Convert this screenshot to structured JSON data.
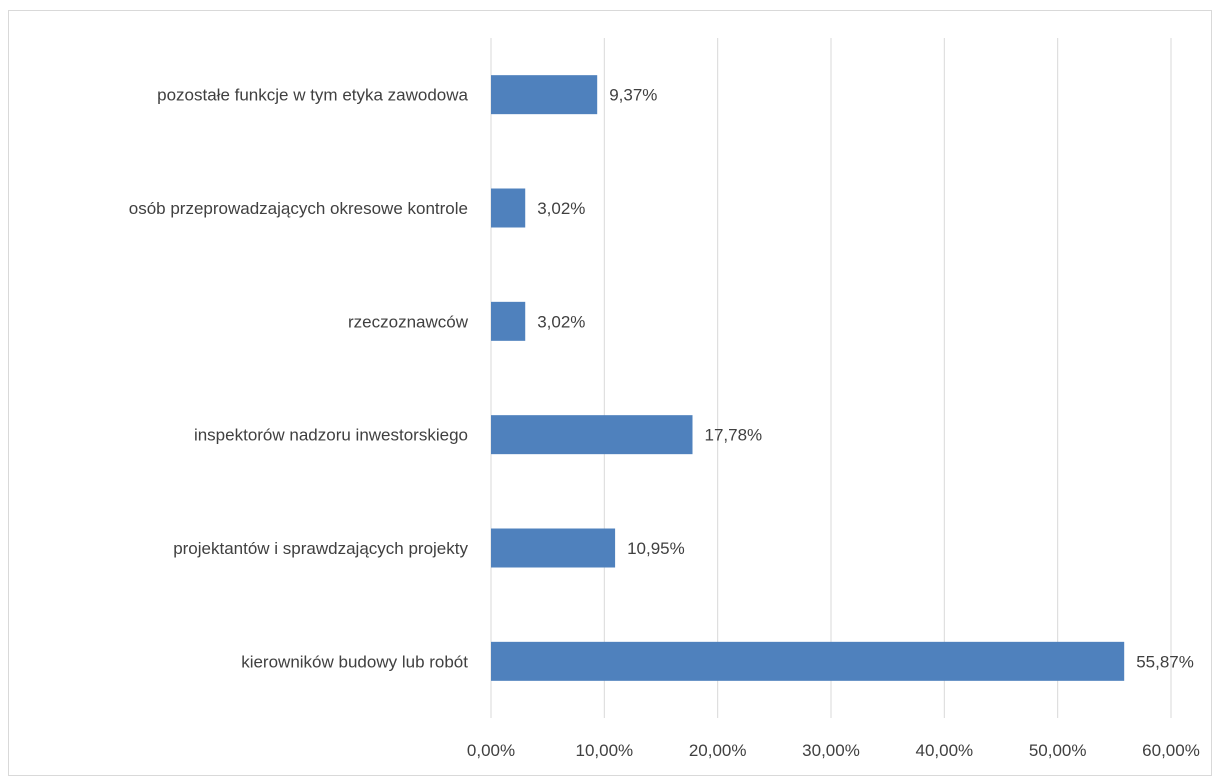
{
  "chart_data": {
    "type": "bar",
    "orientation": "horizontal",
    "categories": [
      "kierowników budowy lub robót",
      "projektantów i sprawdzających projekty",
      "inspektorów nadzoru inwestorskiego",
      "rzeczoznawców",
      "osób przeprowadzających okresowe kontrole",
      "pozostałe funkcje w tym etyka zawodowa"
    ],
    "values": [
      55.87,
      10.95,
      17.78,
      3.02,
      3.02,
      9.37
    ],
    "data_labels": [
      "55,87%",
      "10,95%",
      "17,78%",
      "3,02%",
      "3,02%",
      "9,37%"
    ],
    "xlim": [
      0,
      60
    ],
    "x_ticks": [
      0,
      10,
      20,
      30,
      40,
      50,
      60
    ],
    "x_tick_labels": [
      "0,00%",
      "10,00%",
      "20,00%",
      "30,00%",
      "40,00%",
      "50,00%",
      "60,00%"
    ],
    "grid": "vertical",
    "bar_color": "#4f81bd",
    "title": "",
    "xlabel": "",
    "ylabel": ""
  }
}
